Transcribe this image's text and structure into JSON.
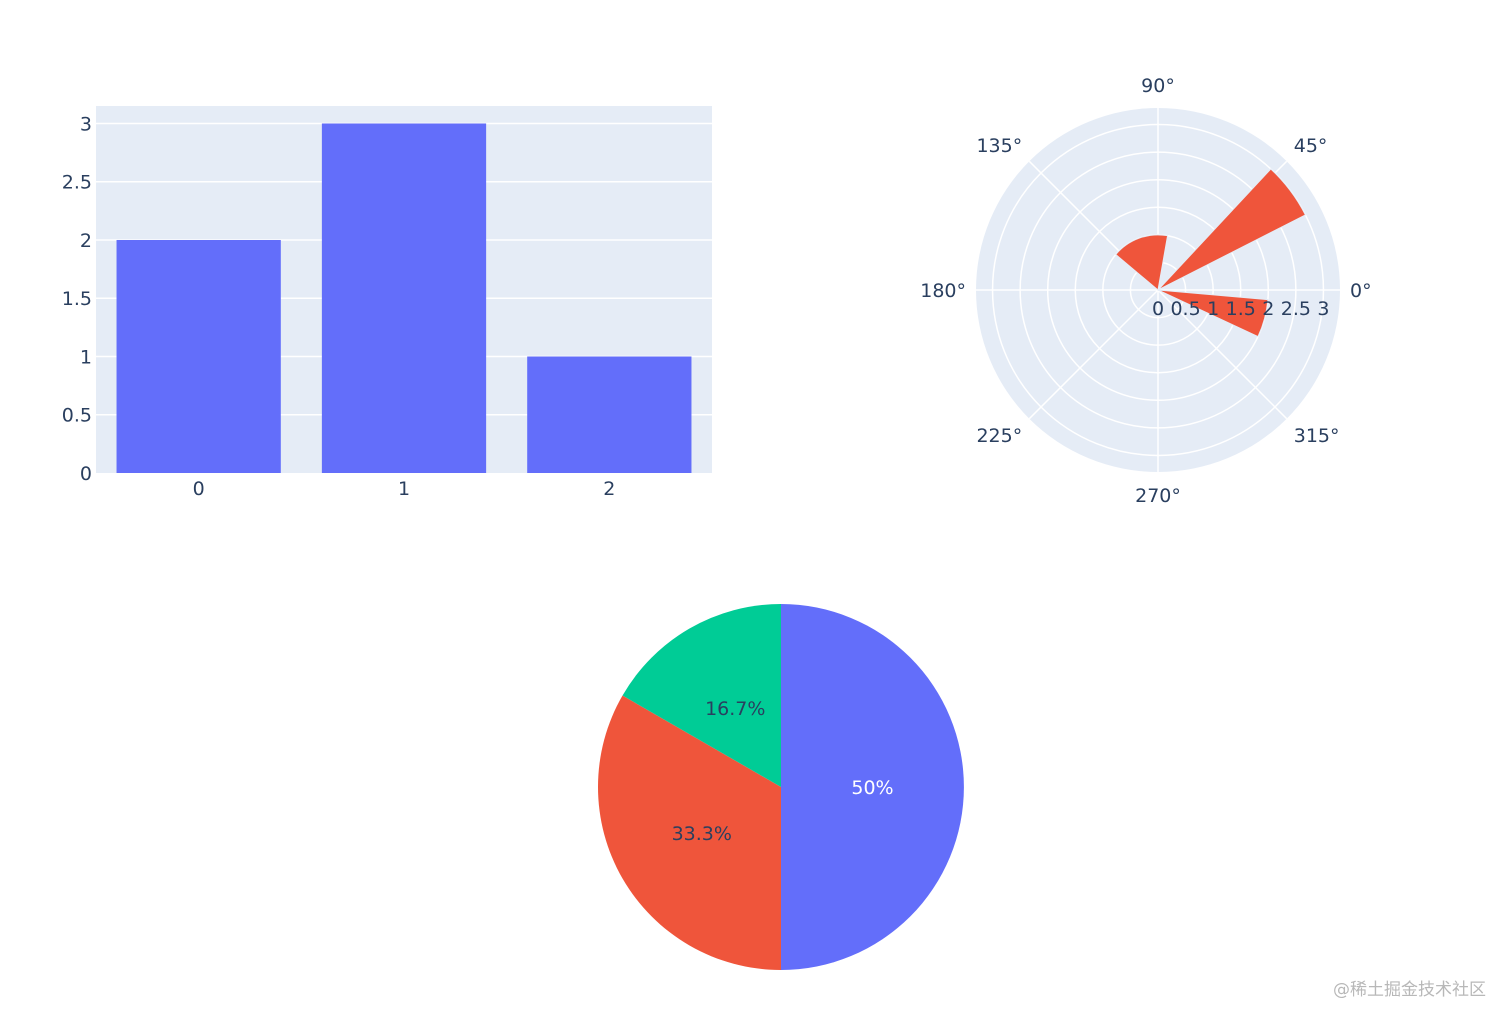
{
  "chart_data": [
    {
      "type": "bar",
      "x": [
        0,
        1,
        2
      ],
      "x_tick_labels": [
        "0",
        "1",
        "2"
      ],
      "values": [
        2,
        3,
        1
      ],
      "y_tick_labels": [
        "0",
        "0.5",
        "1",
        "1.5",
        "2",
        "2.5",
        "3"
      ],
      "ylim": [
        0,
        3.15
      ],
      "color": "#636efa",
      "background": "#e5ecf6",
      "grid": true
    },
    {
      "type": "barpolar",
      "r": [
        1,
        3,
        2
      ],
      "theta": [
        110,
        37,
        345
      ],
      "width": [
        60,
        20,
        20
      ],
      "radial_tick_labels": [
        "0",
        "0.5",
        "1",
        "1.5",
        "2",
        "2.5",
        "3"
      ],
      "radial_range": [
        0,
        3.3
      ],
      "angular_tick_labels": [
        "0°",
        "45°",
        "90°",
        "135°",
        "180°",
        "225°",
        "270°",
        "315°"
      ],
      "color": "#ef553b",
      "background": "#e5ecf6",
      "grid": true
    },
    {
      "type": "pie",
      "values": [
        3,
        2,
        1
      ],
      "labels_text": [
        "50%",
        "33.3%",
        "16.7%"
      ],
      "colors": [
        "#636efa",
        "#ef553b",
        "#00cc96"
      ],
      "label_colors": [
        "#ffffff",
        "#2a3f5f",
        "#2a3f5f"
      ]
    }
  ],
  "watermark": "@稀土掘金技术社区"
}
